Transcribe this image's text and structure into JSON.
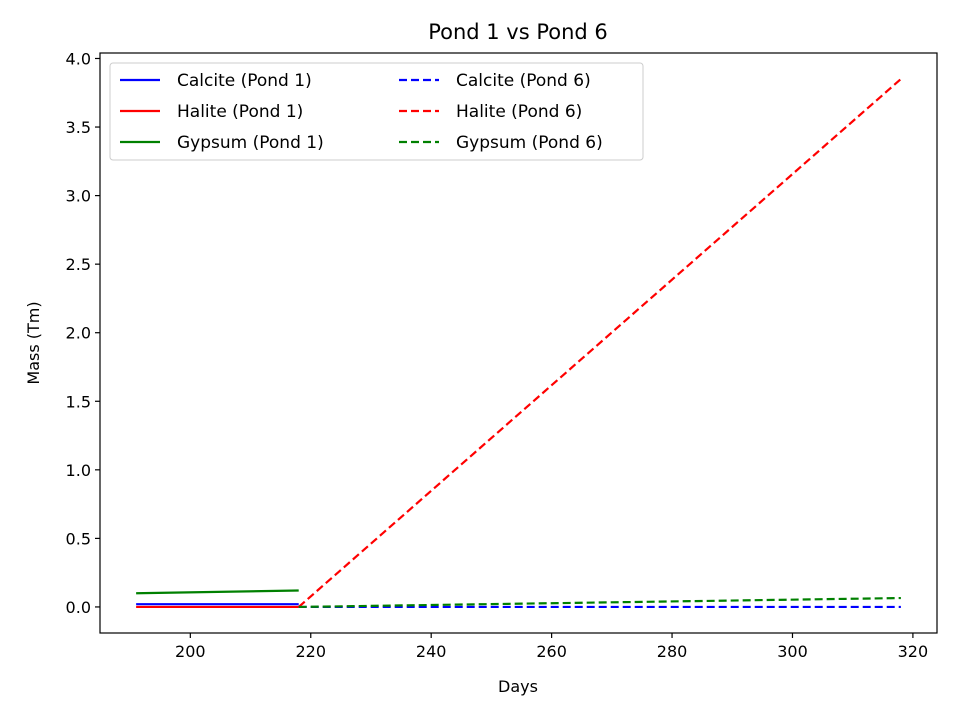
{
  "chart_data": {
    "type": "line",
    "title": "Pond 1 vs Pond 6",
    "xlabel": "Days",
    "ylabel": "Mass (Tm)",
    "xlim": [
      185,
      324
    ],
    "ylim": [
      -0.19,
      4.04
    ],
    "xticks": [
      200,
      220,
      240,
      260,
      280,
      300,
      320
    ],
    "yticks": [
      0.0,
      0.5,
      1.0,
      1.5,
      2.0,
      2.5,
      3.0,
      3.5,
      4.0
    ],
    "xtick_labels": [
      "200",
      "220",
      "240",
      "260",
      "280",
      "300",
      "320"
    ],
    "ytick_labels": [
      "0.0",
      "0.5",
      "1.0",
      "1.5",
      "2.0",
      "2.5",
      "3.0",
      "3.5",
      "4.0"
    ],
    "grid": false,
    "legend": {
      "placement": "top-left",
      "columns": 2
    },
    "series": [
      {
        "name": "Calcite (Pond 1)",
        "color": "#0000ff",
        "dash": "solid",
        "x": [
          191,
          218
        ],
        "y": [
          0.02,
          0.02
        ]
      },
      {
        "name": "Halite (Pond 1)",
        "color": "#ff0000",
        "dash": "solid",
        "x": [
          191,
          218
        ],
        "y": [
          0.0,
          0.0
        ]
      },
      {
        "name": "Gypsum (Pond 1)",
        "color": "#008000",
        "dash": "solid",
        "x": [
          191,
          218
        ],
        "y": [
          0.1,
          0.12
        ]
      },
      {
        "name": "Calcite (Pond 6)",
        "color": "#0000ff",
        "dash": "dashed",
        "x": [
          218,
          318
        ],
        "y": [
          0.0,
          0.0
        ]
      },
      {
        "name": "Halite (Pond 6)",
        "color": "#ff0000",
        "dash": "dashed",
        "x": [
          218,
          318
        ],
        "y": [
          0.0,
          3.85
        ]
      },
      {
        "name": "Gypsum (Pond 6)",
        "color": "#008000",
        "dash": "dashed",
        "x": [
          218,
          318
        ],
        "y": [
          0.0,
          0.065
        ]
      }
    ]
  }
}
